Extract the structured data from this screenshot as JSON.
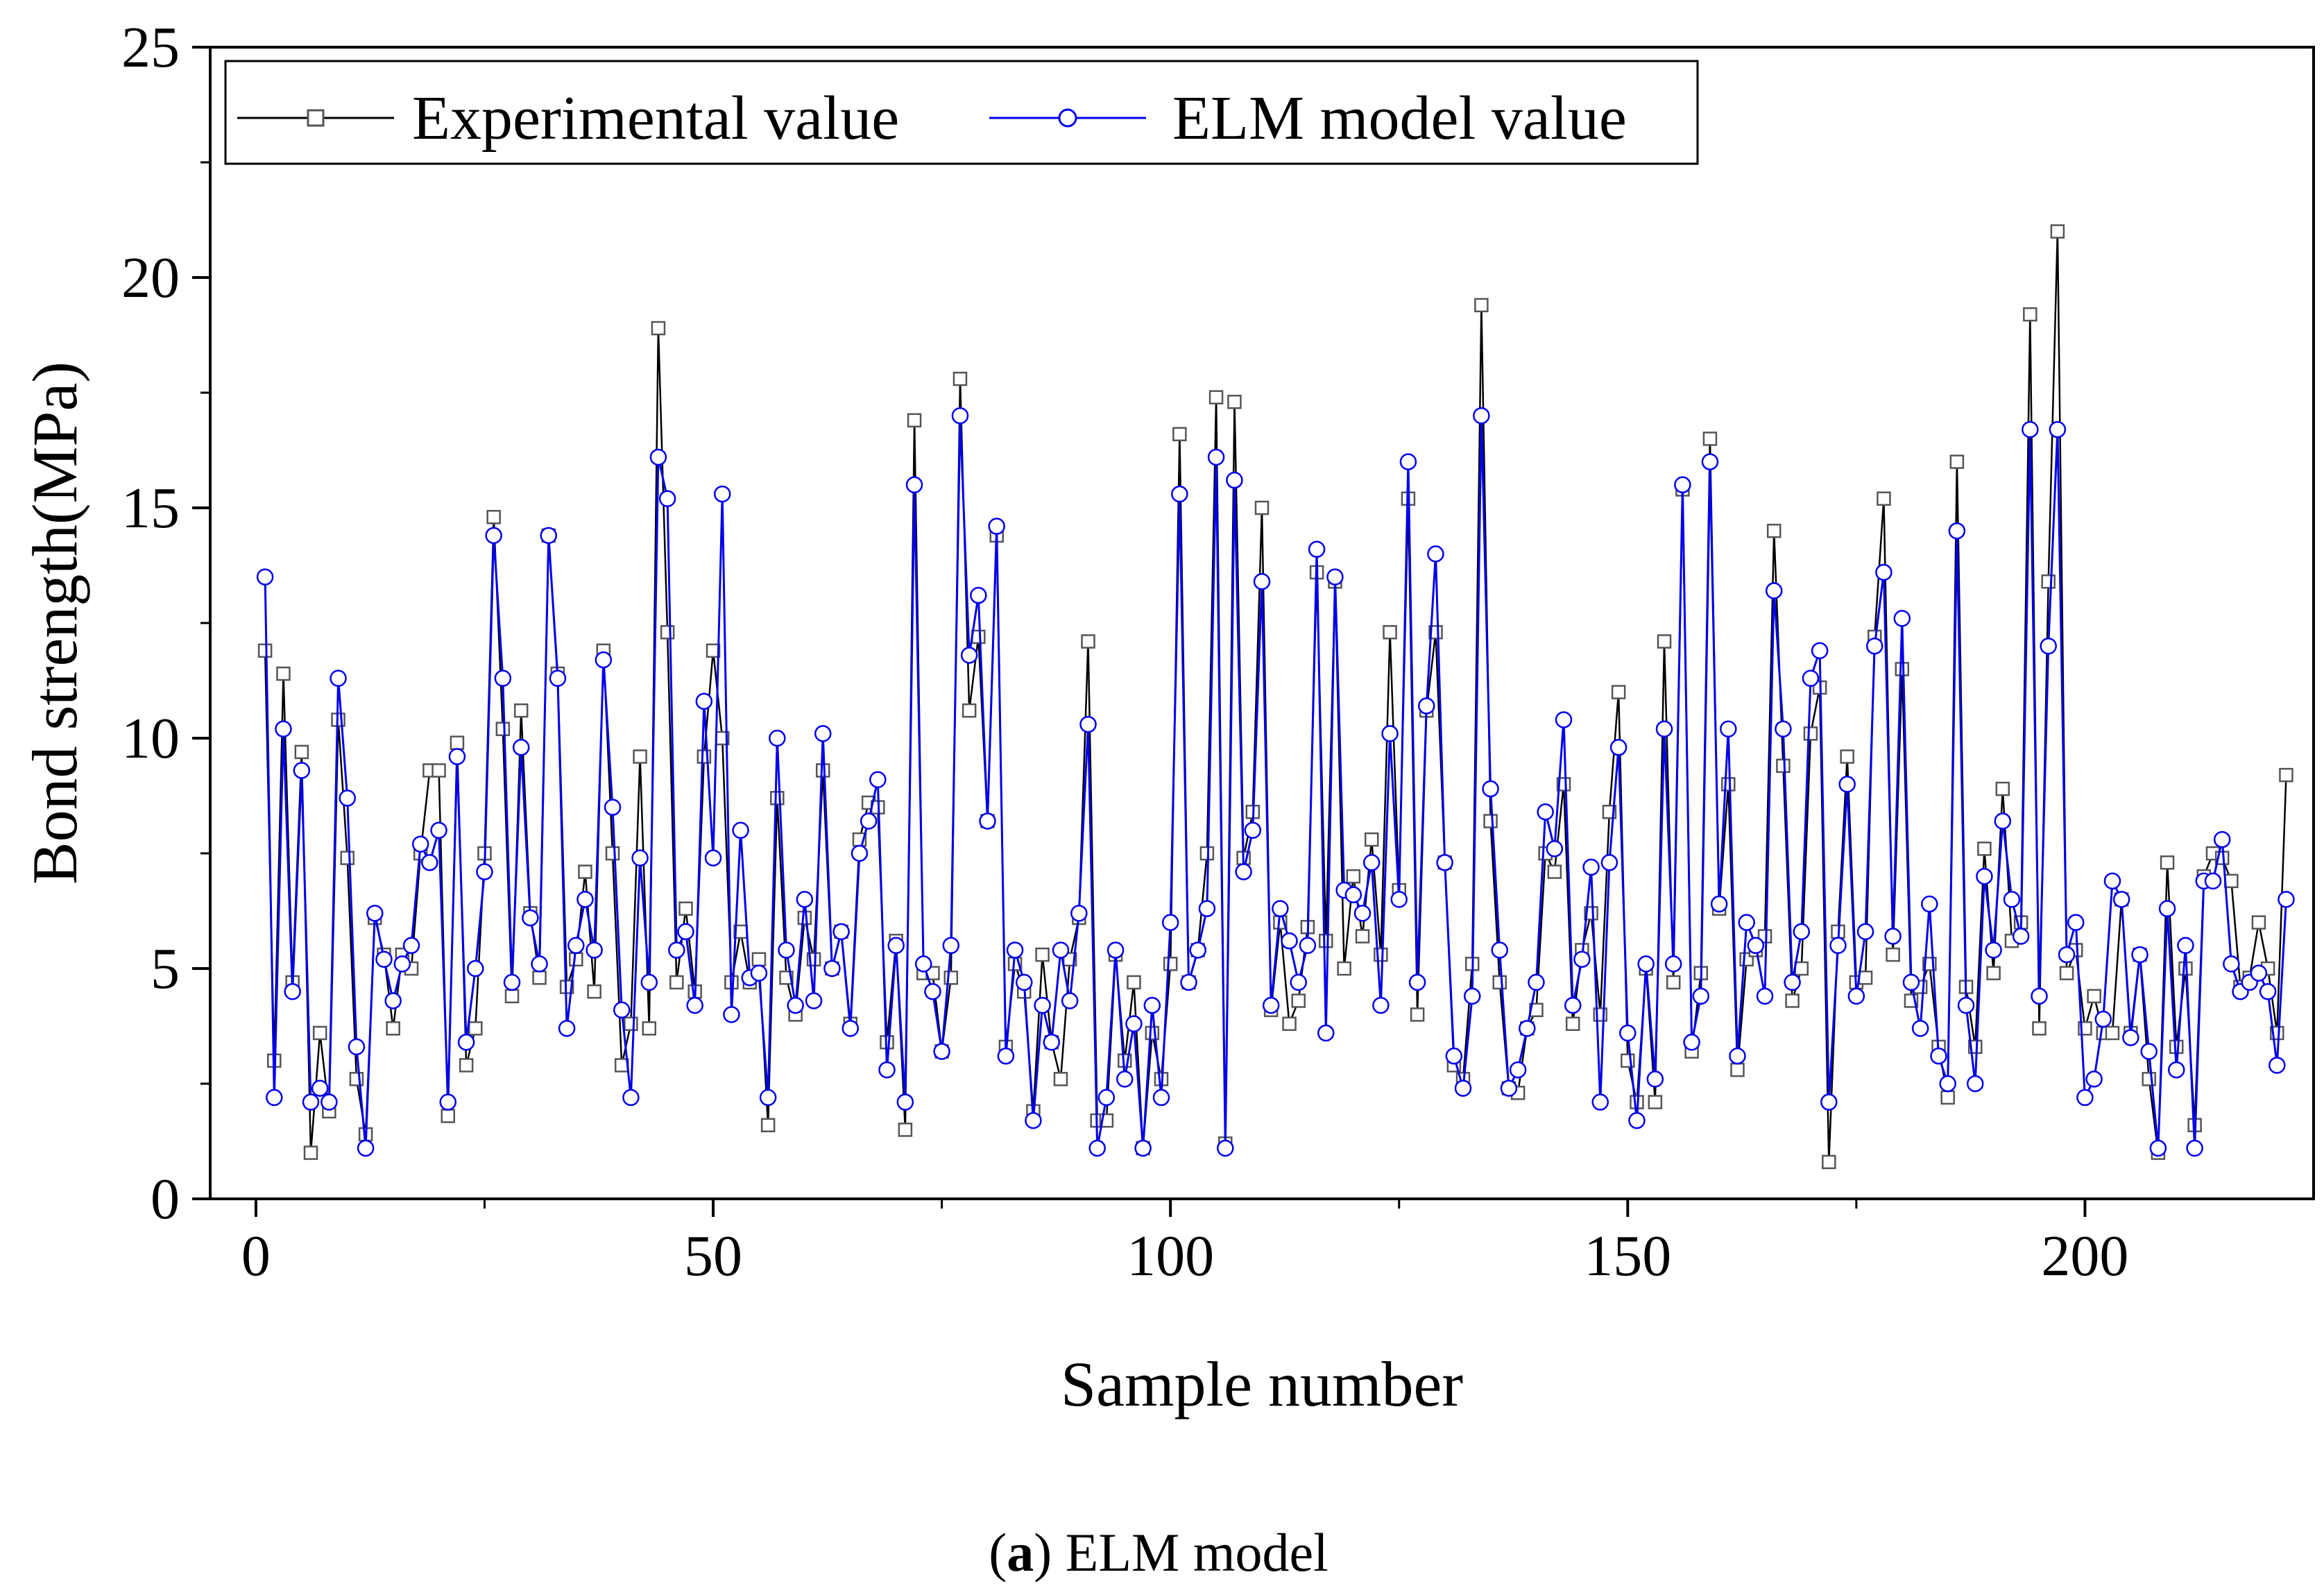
{
  "chart_data": {
    "type": "line",
    "title": "",
    "xlabel": "Sample number",
    "ylabel": "Bond strength(MPa)",
    "xlim": [
      -5,
      225
    ],
    "ylim": [
      0,
      25
    ],
    "xticks": [
      0,
      50,
      100,
      150,
      200
    ],
    "xtick_labels": [
      "0",
      "50",
      "100",
      "150",
      "200"
    ],
    "yticks": [
      0,
      5,
      10,
      15,
      20,
      25
    ],
    "ytick_labels": [
      "0",
      "5",
      "10",
      "15",
      "20",
      "25"
    ],
    "grid": false,
    "legend_position": "top-left",
    "x": [
      1,
      2,
      3,
      4,
      5,
      6,
      7,
      8,
      9,
      10,
      11,
      12,
      13,
      14,
      15,
      16,
      17,
      18,
      19,
      20,
      21,
      22,
      23,
      24,
      25,
      26,
      27,
      28,
      29,
      30,
      31,
      32,
      33,
      34,
      35,
      36,
      37,
      38,
      39,
      40,
      41,
      42,
      43,
      44,
      45,
      46,
      47,
      48,
      49,
      50,
      51,
      52,
      53,
      54,
      55,
      56,
      57,
      58,
      59,
      60,
      61,
      62,
      63,
      64,
      65,
      66,
      67,
      68,
      69,
      70,
      71,
      72,
      73,
      74,
      75,
      76,
      77,
      78,
      79,
      80,
      81,
      82,
      83,
      84,
      85,
      86,
      87,
      88,
      89,
      90,
      91,
      92,
      93,
      94,
      95,
      96,
      97,
      98,
      99,
      100,
      101,
      102,
      103,
      104,
      105,
      106,
      107,
      108,
      109,
      110,
      111,
      112,
      113,
      114,
      115,
      116,
      117,
      118,
      119,
      120,
      121,
      122,
      123,
      124,
      125,
      126,
      127,
      128,
      129,
      130,
      131,
      132,
      133,
      134,
      135,
      136,
      137,
      138,
      139,
      140,
      141,
      142,
      143,
      144,
      145,
      146,
      147,
      148,
      149,
      150,
      151,
      152,
      153,
      154,
      155,
      156,
      157,
      158,
      159,
      160,
      161,
      162,
      163,
      164,
      165,
      166,
      167,
      168,
      169,
      170,
      171,
      172,
      173,
      174,
      175,
      176,
      177,
      178,
      179,
      180,
      181,
      182,
      183,
      184,
      185,
      186,
      187,
      188,
      189,
      190,
      191,
      192,
      193,
      194,
      195,
      196,
      197,
      198,
      199,
      200,
      201,
      202,
      203,
      204,
      205,
      206,
      207,
      208,
      209,
      210,
      211,
      212,
      213,
      214,
      215,
      216,
      217,
      218,
      219,
      220,
      221,
      222
    ],
    "series": [
      {
        "name": "Experimental value",
        "color": "#000000",
        "marker": "square",
        "values": [
          11.9,
          3.0,
          11.4,
          4.7,
          9.7,
          1.0,
          3.6,
          1.9,
          10.4,
          7.4,
          2.6,
          1.4,
          6.1,
          5.3,
          3.7,
          5.3,
          5.0,
          7.5,
          9.3,
          9.3,
          1.8,
          9.9,
          2.9,
          3.7,
          7.5,
          14.8,
          10.2,
          4.4,
          10.6,
          6.2,
          4.8,
          14.4,
          11.4,
          4.6,
          5.2,
          7.1,
          4.5,
          11.9,
          7.5,
          2.9,
          3.8,
          9.6,
          3.7,
          18.9,
          12.3,
          4.7,
          6.3,
          4.5,
          9.6,
          11.9,
          10.0,
          4.7,
          5.8,
          4.7,
          5.2,
          1.6,
          8.7,
          4.8,
          4.0,
          6.1,
          5.2,
          9.3,
          5.0,
          5.8,
          3.8,
          7.8,
          8.6,
          8.5,
          3.4,
          5.6,
          1.5,
          16.9,
          4.9,
          4.9,
          3.2,
          4.8,
          17.8,
          10.6,
          12.2,
          8.2,
          14.4,
          3.3,
          5.1,
          4.5,
          1.9,
          5.3,
          3.4,
          2.6,
          5.2,
          6.1,
          12.1,
          1.7,
          1.7,
          5.3,
          3.0,
          4.7,
          1.1,
          3.6,
          2.6,
          5.1,
          16.6,
          4.7,
          5.4,
          7.5,
          17.4,
          1.2,
          17.3,
          7.4,
          8.4,
          15.0,
          4.1,
          6.0,
          3.8,
          4.3,
          5.9,
          13.6,
          5.6,
          13.4,
          5.0,
          7.0,
          5.7,
          7.8,
          5.3,
          12.3,
          6.7,
          15.2,
          4.0,
          10.6,
          12.3,
          7.3,
          2.9,
          2.6,
          5.1,
          19.4,
          8.2,
          4.7,
          2.4,
          2.3,
          3.7,
          4.1,
          7.5,
          7.1,
          9.0,
          3.8,
          5.4,
          6.2,
          4.0,
          8.4,
          11.0,
          3.0,
          2.1,
          5.0,
          2.1,
          12.1,
          4.7,
          15.4,
          3.2,
          4.9,
          16.5,
          6.3,
          9.0,
          2.8,
          5.2,
          5.4,
          5.7,
          14.5,
          9.4,
          4.3,
          5.0,
          10.1,
          11.1,
          0.8,
          5.8,
          9.6,
          4.7,
          4.8,
          12.2,
          15.2,
          5.3,
          11.5,
          4.3,
          4.6,
          5.1,
          3.3,
          2.2,
          16.0,
          4.6,
          3.3,
          7.6,
          4.9,
          8.9,
          5.6,
          6.0,
          19.2,
          3.7,
          13.4,
          21.0,
          4.9,
          5.4,
          3.7,
          4.4,
          3.6,
          3.6,
          6.5,
          3.6,
          5.3,
          2.6,
          1.0,
          7.3,
          3.3,
          5.0,
          1.6,
          7.0,
          7.5,
          7.4,
          6.9,
          4.6,
          4.8,
          6.0,
          5.0,
          3.6,
          9.2
        ]
      },
      {
        "name": "ELM model value",
        "color": "#0000ee",
        "marker": "circle",
        "values": [
          13.5,
          2.2,
          10.2,
          4.5,
          9.3,
          2.1,
          2.4,
          2.1,
          11.3,
          8.7,
          3.3,
          1.1,
          6.2,
          5.2,
          4.3,
          5.1,
          5.5,
          7.7,
          7.3,
          8.0,
          2.1,
          9.6,
          3.4,
          5.0,
          7.1,
          14.4,
          11.3,
          4.7,
          9.8,
          6.1,
          5.1,
          14.4,
          11.3,
          3.7,
          5.5,
          6.5,
          5.4,
          11.7,
          8.5,
          4.1,
          2.2,
          7.4,
          4.7,
          16.1,
          15.2,
          5.4,
          5.8,
          4.2,
          10.8,
          7.4,
          15.3,
          4.0,
          8.0,
          4.8,
          4.9,
          2.2,
          10.0,
          5.4,
          4.2,
          6.5,
          4.3,
          10.1,
          5.0,
          5.8,
          3.7,
          7.5,
          8.2,
          9.1,
          2.8,
          5.5,
          2.1,
          15.5,
          5.1,
          4.5,
          3.2,
          5.5,
          17.0,
          11.8,
          13.1,
          8.2,
          14.6,
          3.1,
          5.4,
          4.7,
          1.7,
          4.2,
          3.4,
          5.4,
          4.3,
          6.2,
          10.3,
          1.1,
          2.2,
          5.4,
          2.6,
          3.8,
          1.1,
          4.2,
          2.2,
          6.0,
          15.3,
          4.7,
          5.4,
          6.3,
          16.1,
          1.1,
          15.6,
          7.1,
          8.0,
          13.4,
          4.2,
          6.3,
          5.6,
          4.7,
          5.5,
          14.1,
          3.6,
          13.5,
          6.7,
          6.6,
          6.2,
          7.3,
          4.2,
          10.1,
          6.5,
          16.0,
          4.7,
          10.7,
          14.0,
          7.3,
          3.1,
          2.4,
          4.4,
          17.0,
          8.9,
          5.4,
          2.4,
          2.8,
          3.7,
          4.7,
          8.4,
          7.6,
          10.4,
          4.2,
          5.2,
          7.2,
          2.1,
          7.3,
          9.8,
          3.6,
          1.7,
          5.1,
          2.6,
          10.2,
          5.1,
          15.5,
          3.4,
          4.4,
          16.0,
          6.4,
          10.2,
          3.1,
          6.0,
          5.5,
          4.4,
          13.2,
          10.2,
          4.7,
          5.8,
          11.3,
          11.9,
          2.1,
          5.5,
          9.0,
          4.4,
          5.8,
          12.0,
          13.6,
          5.7,
          12.6,
          4.7,
          3.7,
          6.4,
          3.1,
          2.5,
          14.5,
          4.2,
          2.5,
          7.0,
          5.4,
          8.2,
          6.5,
          5.7,
          16.7,
          4.4,
          12.0,
          16.7,
          5.3,
          6.0,
          2.2,
          2.6,
          3.9,
          6.9,
          6.5,
          3.5,
          5.3,
          3.2,
          1.1,
          6.3,
          2.8,
          5.5,
          1.1,
          6.9,
          6.9,
          7.8,
          5.1,
          4.5,
          4.7,
          4.9,
          4.5,
          2.9,
          6.5
        ]
      }
    ]
  },
  "caption": {
    "label": "a",
    "text": "ELM model"
  }
}
